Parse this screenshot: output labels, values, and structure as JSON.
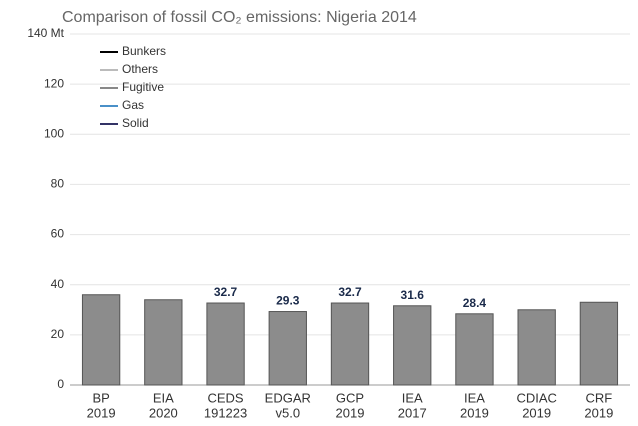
{
  "chart_data": {
    "type": "bar",
    "title": "Comparison of fossil CO₂ emissions: Nigeria 2014",
    "categories": [
      [
        "BP",
        "2019"
      ],
      [
        "EIA",
        "2020"
      ],
      [
        "CEDS",
        "191223"
      ],
      [
        "EDGAR",
        "v5.0"
      ],
      [
        "GCP",
        "2019"
      ],
      [
        "IEA",
        "2017"
      ],
      [
        "IEA",
        "2019"
      ],
      [
        "CDIAC",
        "2019"
      ],
      [
        "CRF",
        "2019"
      ]
    ],
    "values": [
      36,
      34,
      32.7,
      29.3,
      32.7,
      31.6,
      28.4,
      30,
      33
    ],
    "value_labels": [
      null,
      null,
      "32.7",
      "29.3",
      "32.7",
      "31.6",
      "28.4",
      null,
      null
    ],
    "color": "#8c8c8c",
    "legend": [
      {
        "name": "Bunkers",
        "color": "#000000"
      },
      {
        "name": "Others",
        "color": "#bbbbbb"
      },
      {
        "name": "Fugitive",
        "color": "#888888"
      },
      {
        "name": "Gas",
        "color": "#4a90c8"
      },
      {
        "name": "Solid",
        "color": "#333366"
      }
    ],
    "ylim": [
      0,
      140
    ],
    "yticks": [
      0,
      20,
      40,
      60,
      80,
      100,
      120,
      {
        "value": 140,
        "label": "140 Mt"
      }
    ],
    "grid": true
  }
}
